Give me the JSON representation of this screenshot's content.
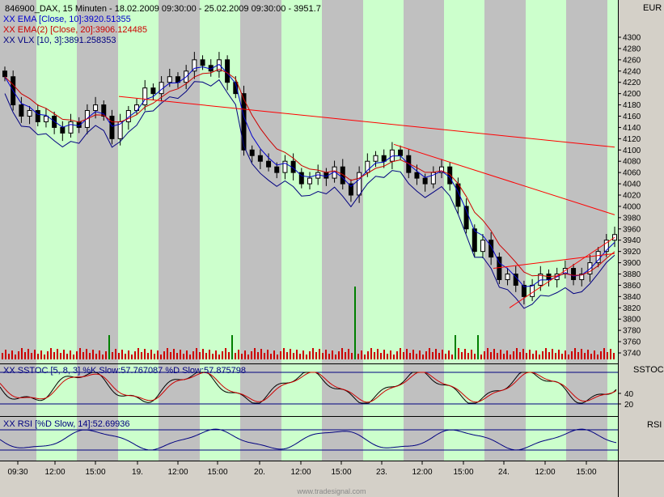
{
  "header": {
    "title": "846900_DAX, 15 Minuten - 18.02.2009 09:30:00 - 25.02.2009 09:30:00 - 3951.7",
    "ema10": "XX EMA [Close, 10]:3920.51355",
    "ema20": "XX EMA(2) [Close, 20]:3906.124485",
    "vlx": "XX VLX [10, 3]:3891.258353",
    "stoch": "XX SSTOC [5, 8, 3] %K Slow:57.767087 %D Slow:57.875798",
    "rsi": "XX RSI [%D Slow, 14]:52.69936"
  },
  "axis": {
    "currency": "EUR",
    "stoch_label": "SSTOC",
    "rsi_label": "RSI",
    "price_ticks": [
      "4300",
      "4280",
      "4260",
      "4240",
      "4220",
      "4200",
      "4180",
      "4160",
      "4140",
      "4120",
      "4100",
      "4080",
      "4060",
      "4040",
      "4020",
      "4000",
      "3980",
      "3960",
      "3940",
      "3920",
      "3900",
      "3880",
      "3860",
      "3840",
      "3820",
      "3800",
      "3780",
      "3760",
      "3740"
    ],
    "stoch_ticks": [
      "40",
      "20"
    ],
    "time_ticks": [
      "09:30",
      "12:00",
      "15:00",
      "19.",
      "12:00",
      "15:00",
      "20.",
      "12:00",
      "15:00",
      "23.",
      "12:00",
      "15:00",
      "24.",
      "12:00",
      "15:00"
    ]
  },
  "footer": {
    "watermark": "www.tradesignal.com"
  },
  "colors": {
    "background": "#c0c0c0",
    "session_band": "#ccffcc",
    "candle": "#000000",
    "ema10": "#0000cc",
    "ema20": "#cc0000",
    "vlx": "#000080",
    "volume": "#cc0000",
    "volume_high": "#008000",
    "trendline": "#ff0000"
  },
  "chart_data": [
    {
      "type": "candlestick",
      "title": "846900_DAX, 15 Minuten",
      "ylim": [
        3730,
        4320
      ],
      "y_unit": "EUR",
      "x_sessions": [
        "18.02",
        "19.02",
        "20.02",
        "23.02",
        "24.02"
      ],
      "series": [
        {
          "name": "EMA [Close, 10]",
          "last": 3920.51355
        },
        {
          "name": "EMA(2) [Close, 20]",
          "last": 3906.124485
        },
        {
          "name": "VLX [10, 3]",
          "last": 3891.258353
        }
      ],
      "close_path": [
        4230,
        4180,
        4160,
        4170,
        4150,
        4160,
        4140,
        4130,
        4150,
        4140,
        4170,
        4180,
        4160,
        4120,
        4150,
        4170,
        4180,
        4210,
        4200,
        4220,
        4230,
        4220,
        4240,
        4260,
        4250,
        4240,
        4260,
        4220,
        4200,
        4100,
        4090,
        4080,
        4070,
        4060,
        4080,
        4060,
        4040,
        4050,
        4060,
        4050,
        4070,
        4040,
        4020,
        4060,
        4080,
        4090,
        4080,
        4100,
        4090,
        4060,
        4050,
        4040,
        4060,
        4070,
        4040,
        4000,
        3960,
        3920,
        3940,
        3910,
        3870,
        3880,
        3860,
        3840,
        3860,
        3880,
        3870,
        3880,
        3890,
        3870,
        3880,
        3900,
        3920,
        3940,
        3950
      ],
      "trendlines": [
        {
          "from": "18.02 12:00",
          "from_value": 4195,
          "to": "25.02 09:30",
          "to_value": 4105
        },
        {
          "from": "23.02 09:30",
          "from_value": 4110,
          "to": "25.02 09:30",
          "to_value": 3985
        },
        {
          "from": "24.02 09:30",
          "from_value": 3820,
          "to": "25.02 09:30",
          "to_value": 3945
        }
      ]
    },
    {
      "type": "line",
      "title": "SSTOC [5, 8, 3]",
      "series": [
        {
          "name": "%K Slow",
          "last": 57.767087
        },
        {
          "name": "%D Slow",
          "last": 57.875798
        }
      ],
      "ticks": [
        40,
        20
      ]
    },
    {
      "type": "line",
      "title": "RSI [%D Slow, 14]",
      "series": [
        {
          "name": "RSI",
          "last": 52.69936
        }
      ]
    }
  ]
}
